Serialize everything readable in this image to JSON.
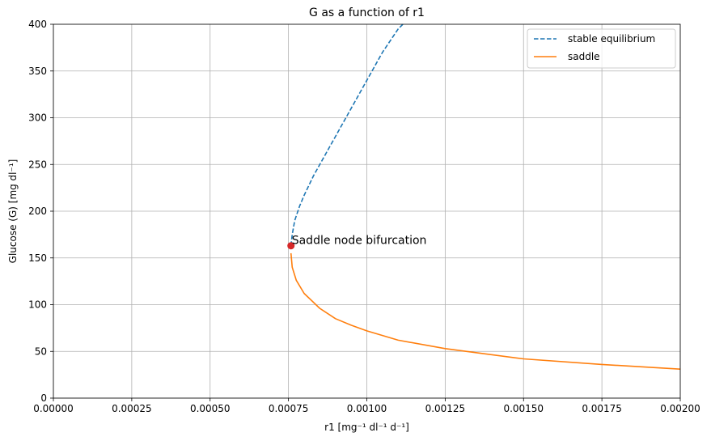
{
  "chart_data": {
    "type": "line",
    "title": "G as a function of r1",
    "xlabel": "r1 [mg⁻¹ dl⁻¹ d⁻¹]",
    "ylabel": "Glucose (G) [mg dl⁻¹]",
    "xlim": [
      0,
      0.002
    ],
    "ylim": [
      0,
      400
    ],
    "x_ticks": [
      "0.00000",
      "0.00025",
      "0.00050",
      "0.00075",
      "0.00100",
      "0.00125",
      "0.00150",
      "0.00175",
      "0.00200"
    ],
    "y_ticks": [
      "0",
      "50",
      "100",
      "150",
      "200",
      "250",
      "300",
      "350",
      "400"
    ],
    "grid": true,
    "legend_position": "top-right",
    "series": [
      {
        "name": "stable equilibrium",
        "color": "#1f77b4",
        "line_style": "dashed",
        "x": [
          0.000758,
          0.000762,
          0.00077,
          0.000785,
          0.0008,
          0.00083,
          0.00086,
          0.0009,
          0.00095,
          0.001,
          0.00105,
          0.0011,
          0.001115
        ],
        "y": [
          163,
          175,
          190,
          205,
          217,
          238,
          256,
          280,
          310,
          340,
          370,
          395,
          400
        ]
      },
      {
        "name": "saddle",
        "color": "#ff7f0e",
        "line_style": "solid",
        "x": [
          0.000758,
          0.000762,
          0.000775,
          0.0008,
          0.00085,
          0.0009,
          0.00095,
          0.001,
          0.0011,
          0.00125,
          0.0015,
          0.00175,
          0.002
        ],
        "y": [
          155,
          140,
          126,
          112,
          96,
          85,
          78,
          72,
          62,
          53,
          42,
          36,
          31
        ]
      }
    ],
    "annotations": [
      {
        "text": "Saddle node bifurcation",
        "x": 0.000758,
        "y": 163,
        "marker_color": "#d62728"
      }
    ]
  }
}
